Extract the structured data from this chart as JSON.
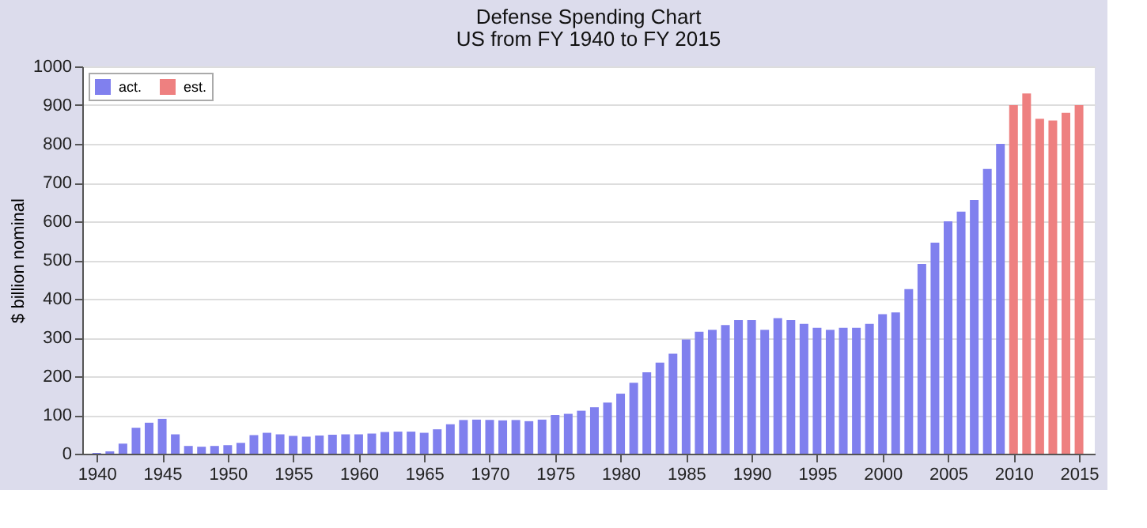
{
  "chart_data": {
    "type": "bar",
    "title": "Defense Spending Chart",
    "subtitle": "US from FY 1940 to FY 2015",
    "ylabel": "$ billion nominal",
    "x": [
      1940,
      1941,
      1942,
      1943,
      1944,
      1945,
      1946,
      1947,
      1948,
      1949,
      1950,
      1951,
      1952,
      1953,
      1954,
      1955,
      1956,
      1957,
      1958,
      1959,
      1960,
      1961,
      1962,
      1963,
      1964,
      1965,
      1966,
      1967,
      1968,
      1969,
      1970,
      1971,
      1972,
      1973,
      1974,
      1975,
      1976,
      1977,
      1978,
      1979,
      1980,
      1981,
      1982,
      1983,
      1984,
      1985,
      1986,
      1987,
      1988,
      1989,
      1990,
      1991,
      1992,
      1993,
      1994,
      1995,
      1996,
      1997,
      1998,
      1999,
      2000,
      2001,
      2002,
      2003,
      2004,
      2005,
      2006,
      2007,
      2008,
      2009,
      2010,
      2011,
      2012,
      2013,
      2014,
      2015
    ],
    "series": [
      {
        "name": "act.",
        "color": "#8080ee",
        "values": [
          2,
          6,
          26,
          67,
          80,
          90,
          50,
          20,
          18,
          20,
          22,
          28,
          48,
          54,
          50,
          46,
          44,
          47,
          49,
          50,
          50,
          52,
          56,
          57,
          57,
          54,
          63,
          76,
          87,
          88,
          87,
          86,
          87,
          84,
          88,
          100,
          103,
          111,
          120,
          132,
          155,
          183,
          210,
          235,
          258,
          295,
          315,
          320,
          332,
          345,
          345,
          320,
          350,
          345,
          335,
          325,
          320,
          325,
          325,
          335,
          360,
          365,
          425,
          490,
          545,
          600,
          625,
          655,
          735,
          800,
          null,
          null,
          null,
          null,
          null,
          null
        ]
      },
      {
        "name": "est.",
        "color": "#ee8080",
        "values": [
          null,
          null,
          null,
          null,
          null,
          null,
          null,
          null,
          null,
          null,
          null,
          null,
          null,
          null,
          null,
          null,
          null,
          null,
          null,
          null,
          null,
          null,
          null,
          null,
          null,
          null,
          null,
          null,
          null,
          null,
          null,
          null,
          null,
          null,
          null,
          null,
          null,
          null,
          null,
          null,
          null,
          null,
          null,
          null,
          null,
          null,
          null,
          null,
          null,
          null,
          null,
          null,
          null,
          null,
          null,
          null,
          null,
          null,
          null,
          null,
          null,
          null,
          null,
          null,
          null,
          null,
          null,
          null,
          null,
          null,
          900,
          930,
          865,
          860,
          880,
          900
        ]
      }
    ],
    "xlim": [
      1939.5,
      2015.6
    ],
    "xticks": [
      1940,
      1945,
      1950,
      1955,
      1960,
      1965,
      1970,
      1975,
      1980,
      1985,
      1990,
      1995,
      2000,
      2005,
      2010,
      2015
    ],
    "ylim": [
      0,
      1000
    ],
    "yticks": [
      0,
      100,
      200,
      300,
      400,
      500,
      600,
      700,
      800,
      900,
      1000
    ],
    "grid": "y",
    "legend": "top left"
  }
}
